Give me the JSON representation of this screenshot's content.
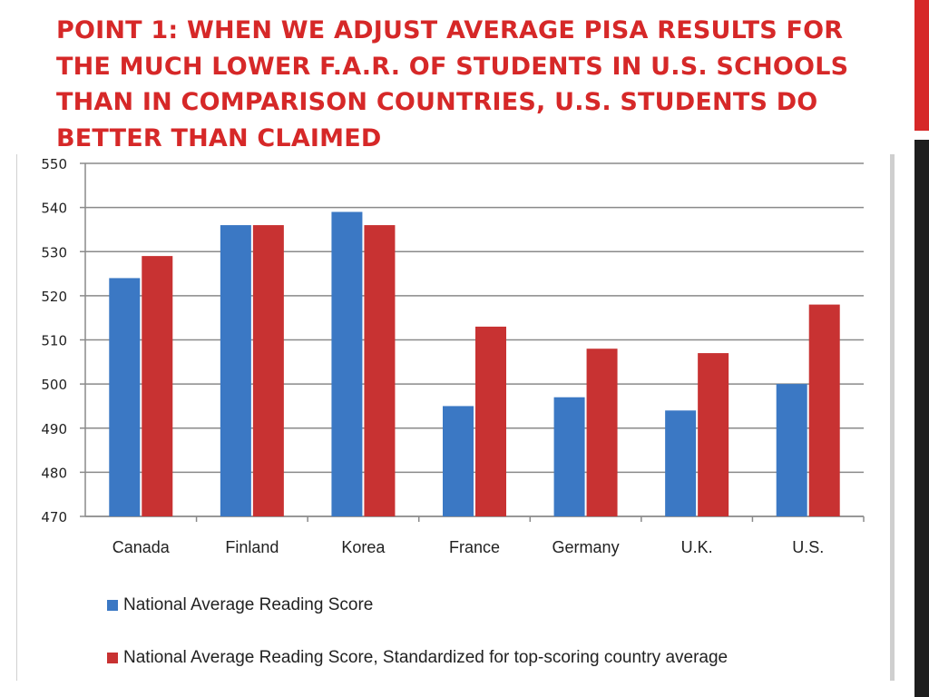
{
  "slide": {
    "title": "Point 1: When we adjust average PISA results for the much lower F.A.R. of students in U.S. schools than in comparison countries, U.S. students do better than claimed",
    "accent_color": "#d62828",
    "dark_color": "#1e1e1e"
  },
  "chart_data": {
    "type": "bar",
    "categories": [
      "Canada",
      "Finland",
      "Korea",
      "France",
      "Germany",
      "U.K.",
      "U.S."
    ],
    "series": [
      {
        "name": "National Average Reading Score",
        "color": "#3b78c4",
        "values": [
          524,
          536,
          539,
          495,
          497,
          494,
          500
        ]
      },
      {
        "name": "National Average Reading Score, Standardized for top-scoring country average",
        "color": "#c83232",
        "values": [
          529,
          536,
          536,
          513,
          508,
          507,
          518
        ]
      }
    ],
    "ylim": [
      470,
      550
    ],
    "yticks": [
      "550",
      "540",
      "530",
      "520",
      "510",
      "500",
      "490",
      "480",
      "470"
    ],
    "grid": true,
    "legend_position": "bottom"
  }
}
